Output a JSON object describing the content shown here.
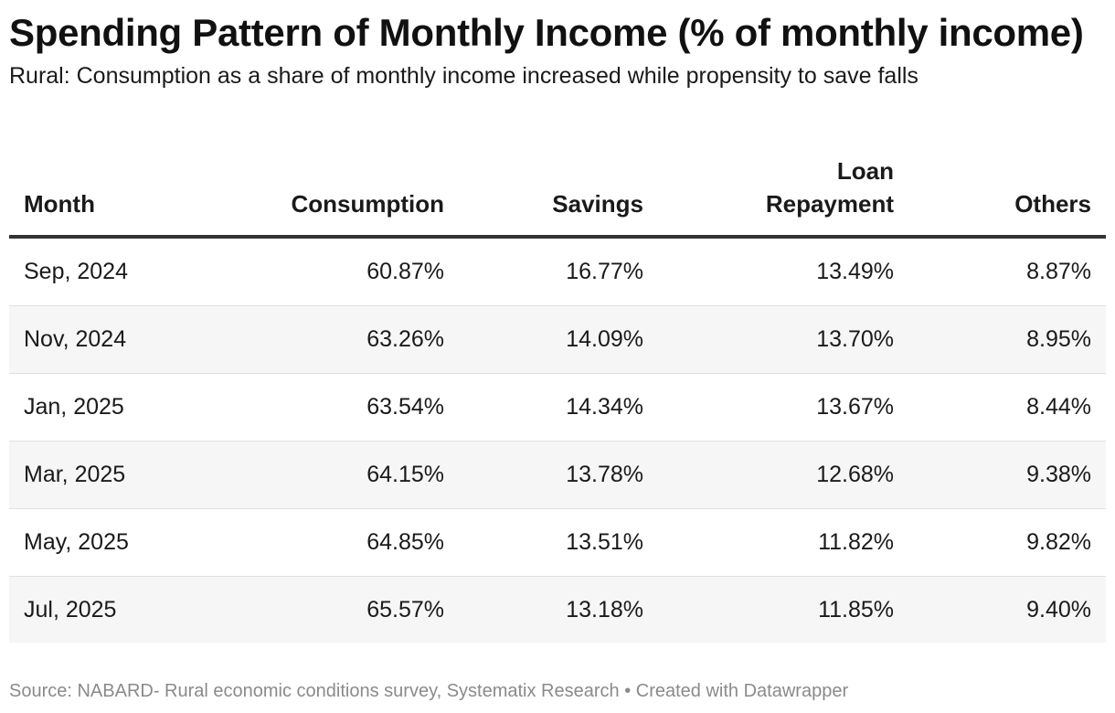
{
  "chart_data": {
    "type": "table",
    "title": "Spending Pattern of Monthly Income (% of monthly income)",
    "subtitle": "Rural: Consumption as a share of monthly income increased while propensity to save falls",
    "columns": [
      "Month",
      "Consumption",
      "Savings",
      "Loan Repayment",
      "Others"
    ],
    "column_header_lines": {
      "loan_line1": "Loan",
      "loan_line2": "Repayment"
    },
    "rows": [
      [
        "Sep, 2024",
        "60.87%",
        "16.77%",
        "13.49%",
        "8.87%"
      ],
      [
        "Nov, 2024",
        "63.26%",
        "14.09%",
        "13.70%",
        "8.95%"
      ],
      [
        "Jan, 2025",
        "63.54%",
        "14.34%",
        "13.67%",
        "8.44%"
      ],
      [
        "Mar, 2025",
        "64.15%",
        "13.78%",
        "12.68%",
        "9.38%"
      ],
      [
        "May, 2025",
        "64.85%",
        "13.51%",
        "11.82%",
        "9.82%"
      ],
      [
        "Jul, 2025",
        "65.57%",
        "13.18%",
        "11.85%",
        "9.40%"
      ]
    ],
    "source": "Source: NABARD- Rural economic conditions survey, Systematix Research • Created with Datawrapper"
  }
}
